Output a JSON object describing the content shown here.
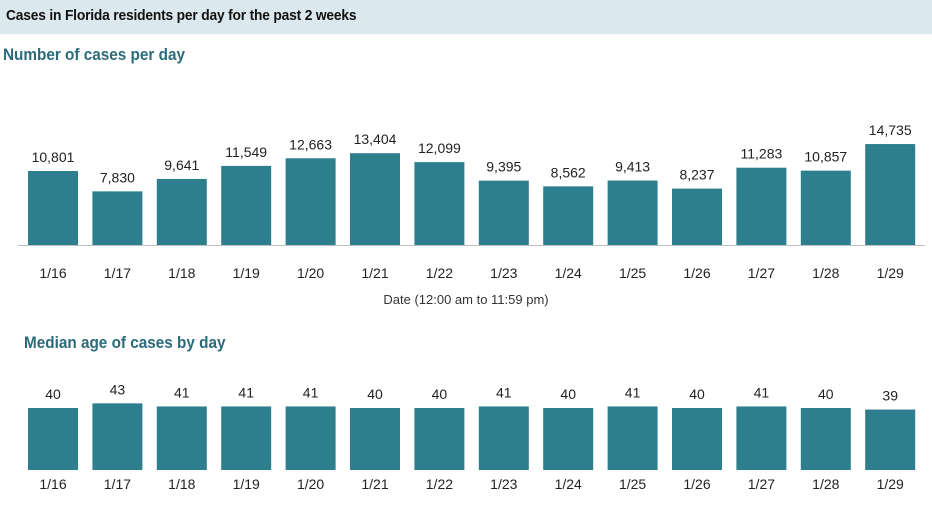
{
  "header": {
    "title": "Cases in Florida residents per day for the past 2 weeks"
  },
  "chart_data": [
    {
      "type": "bar",
      "title": "Number of cases per day",
      "xlabel": "Date (12:00 am to 11:59 pm)",
      "ylabel": "",
      "categories": [
        "1/16",
        "1/17",
        "1/18",
        "1/19",
        "1/20",
        "1/21",
        "1/22",
        "1/23",
        "1/24",
        "1/25",
        "1/26",
        "1/27",
        "1/28",
        "1/29"
      ],
      "values": [
        10801,
        7830,
        9641,
        11549,
        12663,
        13404,
        12099,
        9395,
        8562,
        9413,
        8237,
        11283,
        10857,
        14735
      ],
      "value_labels": [
        "10,801",
        "7,830",
        "9,641",
        "11,549",
        "12,663",
        "13,404",
        "12,099",
        "9,395",
        "8,562",
        "9,413",
        "8,237",
        "11,283",
        "10,857",
        "14,735"
      ],
      "grid": false,
      "colors": {
        "bar": "#2e7f8e"
      }
    },
    {
      "type": "bar",
      "title": "Median age of cases by day",
      "xlabel": "",
      "ylabel": "",
      "categories": [
        "1/16",
        "1/17",
        "1/18",
        "1/19",
        "1/20",
        "1/21",
        "1/22",
        "1/23",
        "1/24",
        "1/25",
        "1/26",
        "1/27",
        "1/28",
        "1/29"
      ],
      "values": [
        40,
        43,
        41,
        41,
        41,
        40,
        40,
        41,
        40,
        41,
        40,
        41,
        40,
        39
      ],
      "value_labels": [
        "40",
        "43",
        "41",
        "41",
        "41",
        "40",
        "40",
        "41",
        "40",
        "41",
        "40",
        "41",
        "40",
        "39"
      ],
      "grid": false,
      "colors": {
        "bar": "#2e7f8e"
      }
    }
  ]
}
